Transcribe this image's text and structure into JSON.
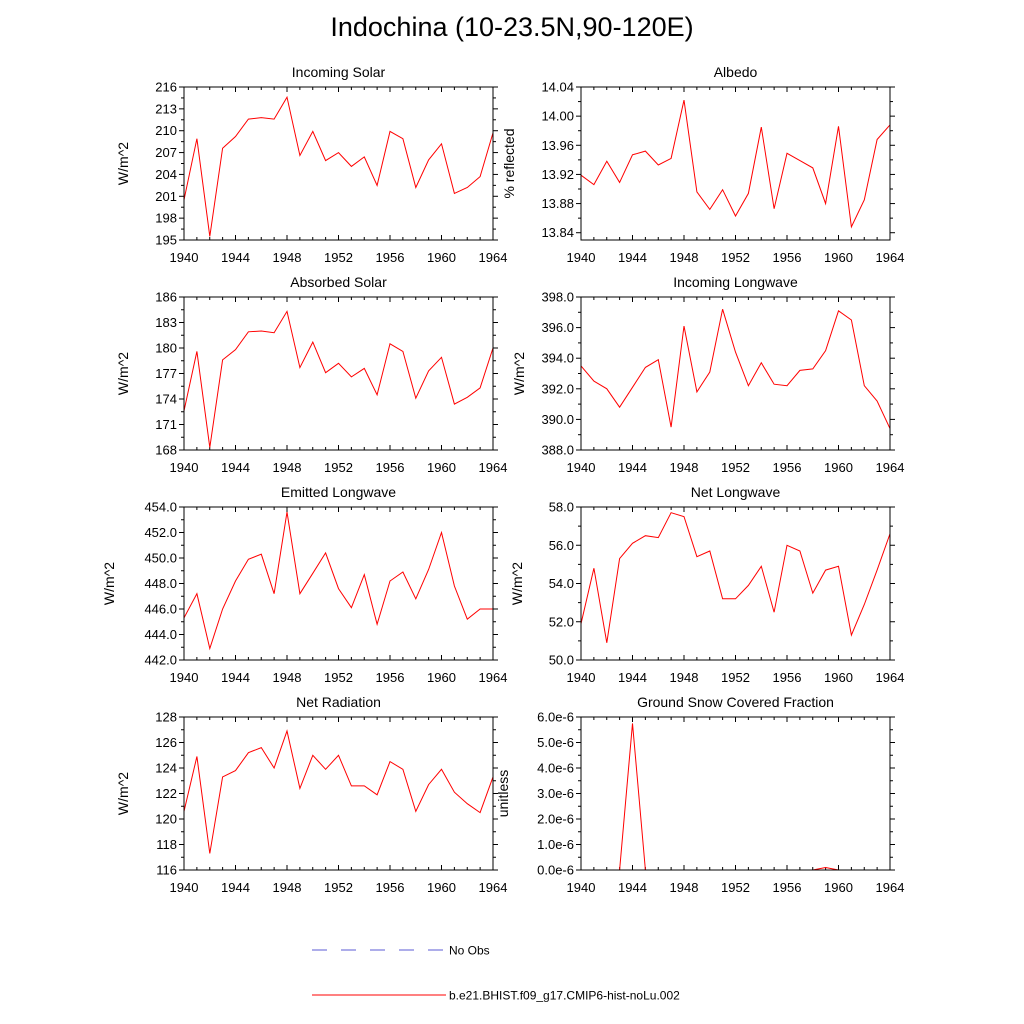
{
  "title": "Indochina (10-23.5N,90-120E)",
  "legend": {
    "obs_label": "No Obs",
    "model_label": "b.e21.BHIST.f09_g17.CMIP6-hist-noLu.002",
    "obs_color": "#5b5bd6",
    "model_color": "#ff0000"
  },
  "chart_data": [
    {
      "type": "line",
      "title": "Incoming Solar",
      "ylabel": "W/m^2",
      "xlim": [
        1940,
        1964
      ],
      "ylim": [
        195,
        216
      ],
      "xticks": [
        1940,
        1944,
        1948,
        1952,
        1956,
        1960,
        1964
      ],
      "yticks": [
        195,
        198,
        201,
        204,
        207,
        210,
        213,
        216
      ],
      "ytick_labels": [
        "195",
        "198",
        "201",
        "204",
        "207",
        "210",
        "213",
        "216"
      ],
      "series": [
        {
          "color": "#ff0000",
          "x": [
            1940,
            1941,
            1942,
            1943,
            1944,
            1945,
            1946,
            1947,
            1948,
            1949,
            1950,
            1951,
            1952,
            1953,
            1954,
            1955,
            1956,
            1957,
            1958,
            1959,
            1960,
            1961,
            1962,
            1963,
            1964
          ],
          "y": [
            200.5,
            208.9,
            195.5,
            207.6,
            209.2,
            211.6,
            211.8,
            211.6,
            214.6,
            206.6,
            209.9,
            205.9,
            207.0,
            205.1,
            206.4,
            202.5,
            209.9,
            208.9,
            202.2,
            206.0,
            208.2,
            201.4,
            202.2,
            203.7,
            209.7
          ]
        }
      ]
    },
    {
      "type": "line",
      "title": "Albedo",
      "ylabel": "% reflected",
      "xlim": [
        1940,
        1964
      ],
      "ylim": [
        13.83,
        14.04
      ],
      "xticks": [
        1940,
        1944,
        1948,
        1952,
        1956,
        1960,
        1964
      ],
      "yticks": [
        13.84,
        13.88,
        13.92,
        13.96,
        14.0,
        14.04
      ],
      "ytick_labels": [
        "13.84",
        "13.88",
        "13.92",
        "13.96",
        "14.00",
        "14.04"
      ],
      "series": [
        {
          "color": "#ff0000",
          "x": [
            1940,
            1941,
            1942,
            1943,
            1944,
            1945,
            1946,
            1947,
            1948,
            1949,
            1950,
            1951,
            1952,
            1953,
            1954,
            1955,
            1956,
            1957,
            1958,
            1959,
            1960,
            1961,
            1962,
            1963,
            1964
          ],
          "y": [
            13.919,
            13.906,
            13.938,
            13.909,
            13.947,
            13.952,
            13.933,
            13.942,
            14.022,
            13.896,
            13.872,
            13.899,
            13.863,
            13.894,
            13.985,
            13.873,
            13.949,
            13.939,
            13.929,
            13.88,
            13.986,
            13.848,
            13.885,
            13.968,
            13.988
          ]
        }
      ]
    },
    {
      "type": "line",
      "title": "Absorbed Solar",
      "ylabel": "W/m^2",
      "xlim": [
        1940,
        1964
      ],
      "ylim": [
        168,
        186
      ],
      "xticks": [
        1940,
        1944,
        1948,
        1952,
        1956,
        1960,
        1964
      ],
      "yticks": [
        168,
        171,
        174,
        177,
        180,
        183,
        186
      ],
      "ytick_labels": [
        "168",
        "171",
        "174",
        "177",
        "180",
        "183",
        "186"
      ],
      "series": [
        {
          "color": "#ff0000",
          "x": [
            1940,
            1941,
            1942,
            1943,
            1944,
            1945,
            1946,
            1947,
            1948,
            1949,
            1950,
            1951,
            1952,
            1953,
            1954,
            1955,
            1956,
            1957,
            1958,
            1959,
            1960,
            1961,
            1962,
            1963,
            1964
          ],
          "y": [
            172.6,
            179.6,
            168.3,
            178.6,
            179.8,
            181.9,
            182.0,
            181.8,
            184.3,
            177.7,
            180.7,
            177.1,
            178.2,
            176.6,
            177.6,
            174.5,
            180.5,
            179.6,
            174.1,
            177.3,
            178.9,
            173.4,
            174.2,
            175.3,
            180.0
          ]
        }
      ]
    },
    {
      "type": "line",
      "title": "Incoming Longwave",
      "ylabel": "W/m^2",
      "xlim": [
        1940,
        1964
      ],
      "ylim": [
        388,
        398
      ],
      "xticks": [
        1940,
        1944,
        1948,
        1952,
        1956,
        1960,
        1964
      ],
      "yticks": [
        388,
        390,
        392,
        394,
        396,
        398
      ],
      "ytick_labels": [
        "388.0",
        "390.0",
        "392.0",
        "394.0",
        "396.0",
        "398.0"
      ],
      "series": [
        {
          "color": "#ff0000",
          "x": [
            1940,
            1941,
            1942,
            1943,
            1944,
            1945,
            1946,
            1947,
            1948,
            1949,
            1950,
            1951,
            1952,
            1953,
            1954,
            1955,
            1956,
            1957,
            1958,
            1959,
            1960,
            1961,
            1962,
            1963,
            1964
          ],
          "y": [
            393.5,
            392.5,
            392.0,
            390.8,
            392.1,
            393.4,
            393.9,
            389.5,
            396.1,
            391.8,
            393.1,
            397.2,
            394.4,
            392.2,
            393.7,
            392.3,
            392.2,
            393.2,
            393.3,
            394.5,
            397.1,
            396.5,
            392.2,
            391.2,
            389.4
          ]
        }
      ]
    },
    {
      "type": "line",
      "title": "Emitted Longwave",
      "ylabel": "W/m^2",
      "xlim": [
        1940,
        1964
      ],
      "ylim": [
        442,
        454
      ],
      "xticks": [
        1940,
        1944,
        1948,
        1952,
        1956,
        1960,
        1964
      ],
      "yticks": [
        442,
        444,
        446,
        448,
        450,
        452,
        454
      ],
      "ytick_labels": [
        "442.0",
        "444.0",
        "446.0",
        "448.0",
        "450.0",
        "452.0",
        "454.0"
      ],
      "series": [
        {
          "color": "#ff0000",
          "x": [
            1940,
            1941,
            1942,
            1943,
            1944,
            1945,
            1946,
            1947,
            1948,
            1949,
            1950,
            1951,
            1952,
            1953,
            1954,
            1955,
            1956,
            1957,
            1958,
            1959,
            1960,
            1961,
            1962,
            1963,
            1964
          ],
          "y": [
            445.3,
            447.2,
            442.9,
            446.0,
            448.2,
            449.9,
            450.3,
            447.2,
            453.6,
            447.2,
            448.8,
            450.4,
            447.6,
            446.1,
            448.7,
            444.8,
            448.2,
            448.9,
            446.8,
            449.1,
            452.0,
            447.8,
            445.2,
            446.0,
            446.0
          ]
        }
      ]
    },
    {
      "type": "line",
      "title": "Net Longwave",
      "ylabel": "W/m^2",
      "xlim": [
        1940,
        1964
      ],
      "ylim": [
        50,
        58
      ],
      "xticks": [
        1940,
        1944,
        1948,
        1952,
        1956,
        1960,
        1964
      ],
      "yticks": [
        50,
        52,
        54,
        56,
        58
      ],
      "ytick_labels": [
        "50.0",
        "52.0",
        "54.0",
        "56.0",
        "58.0"
      ],
      "series": [
        {
          "color": "#ff0000",
          "x": [
            1940,
            1941,
            1942,
            1943,
            1944,
            1945,
            1946,
            1947,
            1948,
            1949,
            1950,
            1951,
            1952,
            1953,
            1954,
            1955,
            1956,
            1957,
            1958,
            1959,
            1960,
            1961,
            1962,
            1963,
            1964
          ],
          "y": [
            51.9,
            54.8,
            50.9,
            55.3,
            56.1,
            56.5,
            56.4,
            57.7,
            57.5,
            55.4,
            55.7,
            53.2,
            53.2,
            53.9,
            54.9,
            52.5,
            56.0,
            55.7,
            53.5,
            54.7,
            54.9,
            51.3,
            52.9,
            54.7,
            56.6
          ]
        }
      ]
    },
    {
      "type": "line",
      "title": "Net Radiation",
      "ylabel": "W/m^2",
      "xlim": [
        1940,
        1964
      ],
      "ylim": [
        116,
        128
      ],
      "xticks": [
        1940,
        1944,
        1948,
        1952,
        1956,
        1960,
        1964
      ],
      "yticks": [
        116,
        118,
        120,
        122,
        124,
        126,
        128
      ],
      "ytick_labels": [
        "116",
        "118",
        "120",
        "122",
        "124",
        "126",
        "128"
      ],
      "series": [
        {
          "color": "#ff0000",
          "x": [
            1940,
            1941,
            1942,
            1943,
            1944,
            1945,
            1946,
            1947,
            1948,
            1949,
            1950,
            1951,
            1952,
            1953,
            1954,
            1955,
            1956,
            1957,
            1958,
            1959,
            1960,
            1961,
            1962,
            1963,
            1964
          ],
          "y": [
            120.6,
            124.9,
            117.3,
            123.3,
            123.8,
            125.2,
            125.6,
            124.0,
            126.9,
            122.4,
            125.0,
            123.9,
            125.0,
            122.6,
            122.6,
            121.9,
            124.5,
            123.9,
            120.6,
            122.7,
            123.9,
            122.1,
            121.2,
            120.5,
            123.3
          ]
        }
      ]
    },
    {
      "type": "line",
      "title": "Ground Snow Covered Fraction",
      "ylabel": "unitless",
      "xlim": [
        1940,
        1964
      ],
      "ylim": [
        0,
        6e-06
      ],
      "xticks": [
        1940,
        1944,
        1948,
        1952,
        1956,
        1960,
        1964
      ],
      "yticks": [
        0,
        1e-06,
        2e-06,
        3e-06,
        4e-06,
        5e-06,
        6e-06
      ],
      "ytick_labels": [
        "0.0e-6",
        "1.0e-6",
        "2.0e-6",
        "3.0e-6",
        "4.0e-6",
        "5.0e-6",
        "6.0e-6"
      ],
      "series": [
        {
          "color": "#ff0000",
          "x": [
            1940,
            1941,
            1942,
            1943,
            1944,
            1945,
            1946,
            1947,
            1948,
            1949,
            1950,
            1951,
            1952,
            1953,
            1954,
            1955,
            1956,
            1957,
            1958,
            1959,
            1960,
            1961,
            1962,
            1963,
            1964
          ],
          "y": [
            0,
            0,
            0,
            0,
            5.75e-06,
            0,
            0,
            0,
            0,
            0,
            0,
            0,
            0,
            0,
            0,
            0,
            0,
            0,
            0,
            1e-07,
            0,
            0,
            0,
            0,
            0
          ]
        }
      ]
    }
  ]
}
